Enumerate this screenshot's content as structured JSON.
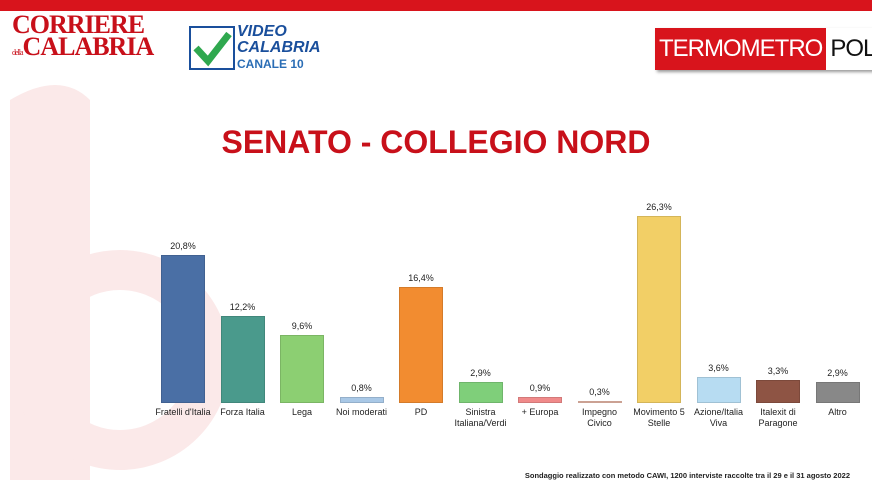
{
  "header": {
    "logo_left": {
      "line1": "CORRIERE",
      "small": "della",
      "line2": "CALABRIA"
    },
    "logo_center": {
      "line1": "VIDEO",
      "line2": "CALABRIA",
      "line3": "CANALE 10"
    },
    "logo_right": {
      "part1": "TERMOMETRO",
      "part2": "POLITICO"
    }
  },
  "chart_data": {
    "type": "bar",
    "title": "SENATO - COLLEGIO NORD",
    "categories": [
      "Fratelli d'Italia",
      "Forza Italia",
      "Lega",
      "Noi moderati",
      "PD",
      "Sinistra Italiana/Verdi",
      "+ Europa",
      "Impegno Civico",
      "Movimento 5 Stelle",
      "Azione/Italia Viva",
      "Italexit di Paragone",
      "Altro"
    ],
    "values": [
      20.8,
      12.2,
      9.6,
      0.8,
      16.4,
      2.9,
      0.9,
      0.3,
      26.3,
      3.6,
      3.3,
      2.9
    ],
    "value_labels": [
      "20,8%",
      "12,2%",
      "9,6%",
      "0,8%",
      "16,4%",
      "2,9%",
      "0,9%",
      "0,3%",
      "26,3%",
      "3,6%",
      "3,3%",
      "2,9%"
    ],
    "colors": [
      "#4a6fa5",
      "#4a9a8c",
      "#8ccf72",
      "#a9c8e6",
      "#f28c30",
      "#7fcf7a",
      "#f08a8a",
      "#e8b8a8",
      "#f2cf66",
      "#b7dcf2",
      "#8e5444",
      "#888888"
    ],
    "footnote": "Sondaggio realizzato con metodo CAWI, 1200 interviste raccolte tra il 29 e il 31 agosto 2022"
  }
}
